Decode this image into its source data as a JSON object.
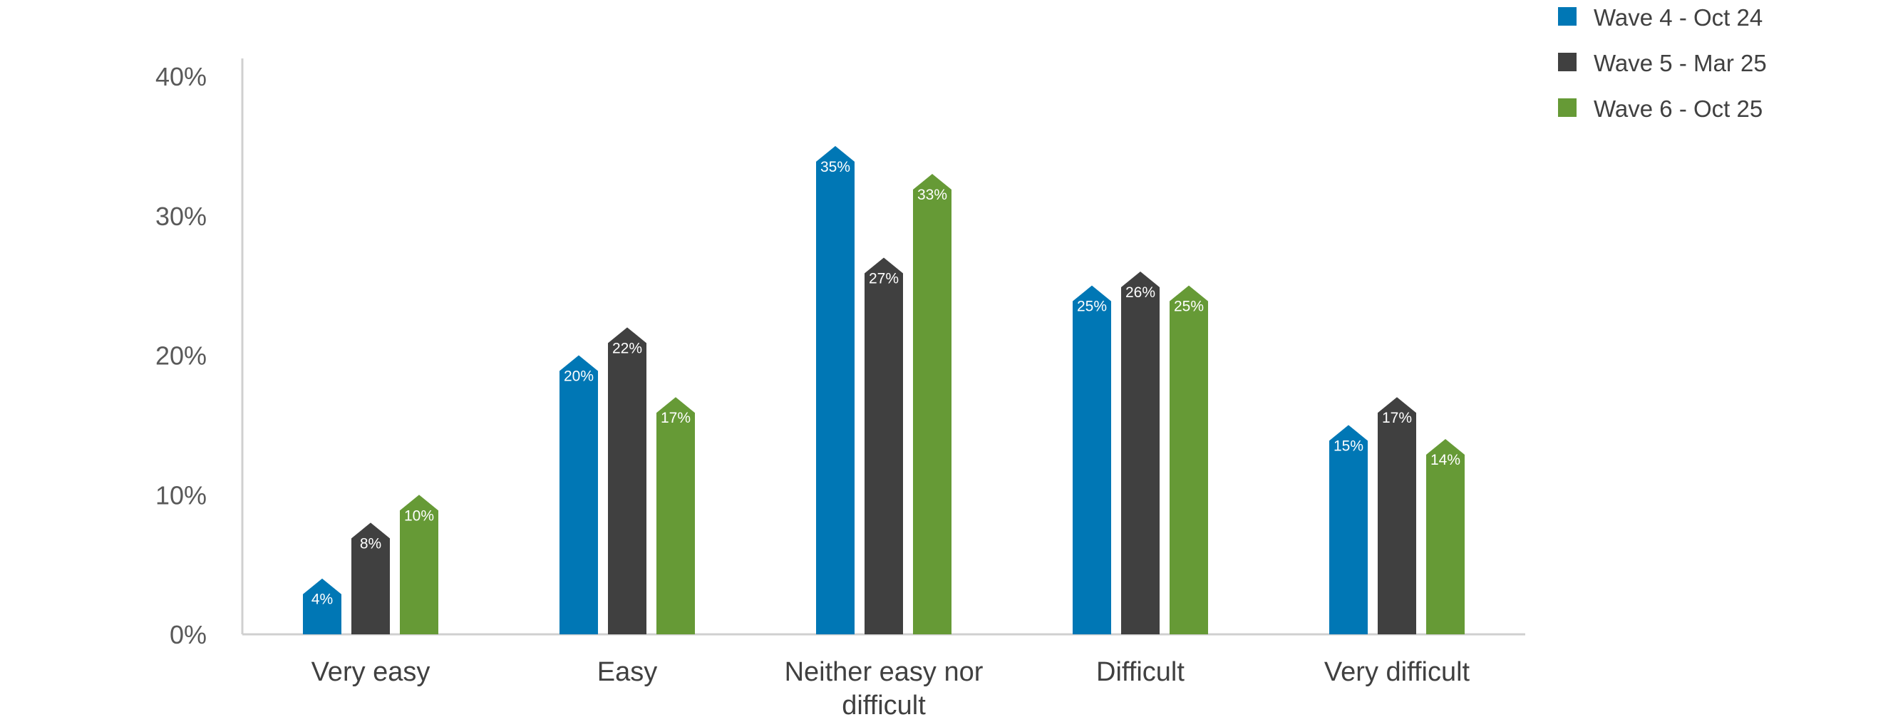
{
  "chart_data": {
    "type": "bar",
    "categories": [
      "Very easy",
      "Easy",
      "Neither easy nor difficult",
      "Difficult",
      "Very difficult"
    ],
    "series": [
      {
        "name": "Wave 4 - Oct 24",
        "color": "#0077B5",
        "values": [
          4,
          20,
          35,
          25,
          15
        ],
        "labels": [
          "4%",
          "20%",
          "35%",
          "25%",
          "15%"
        ]
      },
      {
        "name": "Wave 5 - Mar 25",
        "color": "#404040",
        "values": [
          8,
          22,
          27,
          26,
          17
        ],
        "labels": [
          "8%",
          "22%",
          "27%",
          "26%",
          "17%"
        ]
      },
      {
        "name": "Wave 6 - Oct 25",
        "color": "#669A36",
        "values": [
          10,
          17,
          33,
          25,
          14
        ],
        "labels": [
          "10%",
          "17%",
          "33%",
          "25%",
          "14%"
        ]
      }
    ],
    "yticks": [
      0,
      10,
      20,
      30,
      40
    ],
    "ytick_labels": [
      "0%",
      "10%",
      "20%",
      "30%",
      "40%"
    ],
    "ylim": [
      0,
      40
    ],
    "grid": false,
    "legend_position": "top-right"
  }
}
